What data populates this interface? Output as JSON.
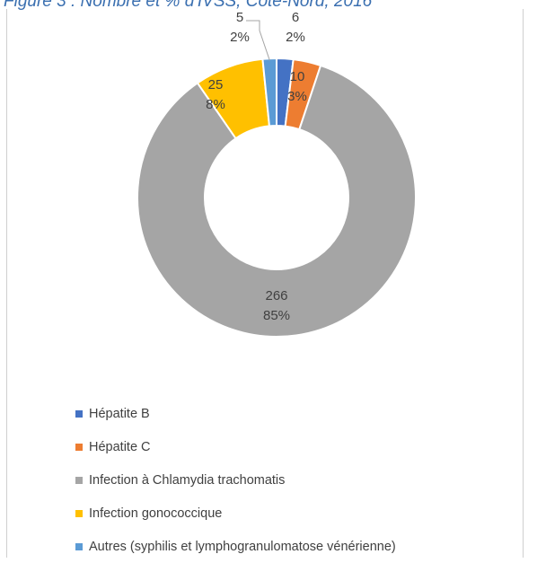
{
  "figure_title": "Figure 3 : Nombre et % d'IVSS, Côte-Nord, 2016",
  "chart_data": {
    "type": "pie",
    "donut": true,
    "legend_position": "bottom",
    "categories": [
      "Hépatite B",
      "Hépatite C",
      "Infection à Chlamydia trachomatis",
      "Infection gonococcique",
      "Autres (syphilis et lymphogranulomatose vénérienne)"
    ],
    "values": [
      6,
      10,
      266,
      25,
      5
    ],
    "percent_labels": [
      "2%",
      "3%",
      "85%",
      "8%",
      "2%"
    ],
    "colors": [
      "#4472c4",
      "#ed7d31",
      "#a5a5a5",
      "#ffc000",
      "#5b9bd5"
    ]
  }
}
